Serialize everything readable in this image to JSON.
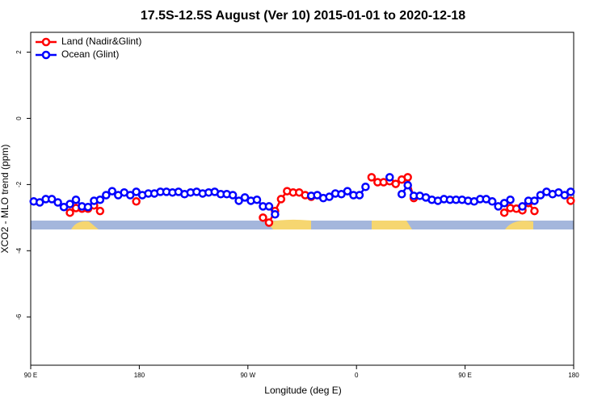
{
  "chart_data": {
    "type": "line",
    "title": "17.5S-12.5S August (Ver 10)   2015-01-01 to 2020-12-18",
    "x_label": "Longitude (deg E)",
    "y_label": "XCO2 - MLO trend (ppm)",
    "xlim": [
      90,
      540
    ],
    "ylim": [
      -7.46,
      2.6
    ],
    "xticks": [
      {
        "value": 90,
        "label": "90 E"
      },
      180,
      {
        "value": 270,
        "label": "90 W"
      },
      {
        "value": 360,
        "label": "0"
      },
      {
        "value": 450,
        "label": "90 E"
      },
      {
        "value": 540,
        "label": "180"
      }
    ],
    "yticks": [
      2,
      0,
      -2,
      -4,
      -6
    ],
    "legend": "top-left",
    "x": [
      92.5,
      97.5,
      102.5,
      107.5,
      112.5,
      117.5,
      122.5,
      127.5,
      132.5,
      137.5,
      142.5,
      147.5,
      152.5,
      157.5,
      162.5,
      167.5,
      172.5,
      177.5,
      182.5,
      187.5,
      192.5,
      197.5,
      202.5,
      207.5,
      212.5,
      217.5,
      222.5,
      227.5,
      232.5,
      237.5,
      242.5,
      247.5,
      252.5,
      257.5,
      262.5,
      267.5,
      272.5,
      277.5,
      282.5,
      287.5,
      292.5,
      297.5,
      302.5,
      307.5,
      312.5,
      317.5,
      322.5,
      327.5,
      332.5,
      337.5,
      342.5,
      347.5,
      352.5,
      357.5,
      362.5,
      367.5,
      372.5,
      377.5,
      382.5,
      387.5,
      392.5,
      397.5,
      402.5,
      407.5,
      412.5,
      417.5,
      422.5,
      427.5,
      432.5,
      437.5,
      442.5,
      447.5,
      452.5,
      457.5,
      462.5,
      467.5,
      472.5,
      477.5,
      482.5,
      487.5,
      492.5,
      497.5,
      502.5,
      507.5,
      512.5,
      517.5,
      522.5,
      527.5,
      532.5,
      537.5
    ],
    "series": [
      {
        "name": "Land (Nadir&Glint)",
        "color": "#ff0000",
        "values": [
          null,
          null,
          null,
          null,
          null,
          null,
          -2.85,
          -2.71,
          -2.73,
          -2.73,
          -2.63,
          -2.8,
          null,
          null,
          null,
          null,
          null,
          -2.51,
          null,
          null,
          null,
          null,
          null,
          null,
          null,
          null,
          null,
          null,
          null,
          null,
          null,
          null,
          null,
          null,
          null,
          null,
          null,
          null,
          -3.0,
          -3.15,
          -2.8,
          -2.44,
          -2.2,
          -2.24,
          -2.24,
          -2.32,
          -2.37,
          null,
          null,
          null,
          null,
          null,
          null,
          null,
          null,
          null,
          -1.78,
          -1.93,
          -1.93,
          -1.9,
          -1.98,
          -1.85,
          -1.78,
          -2.41,
          null,
          null,
          null,
          null,
          null,
          null,
          null,
          null,
          null,
          null,
          null,
          null,
          null,
          null,
          -2.85,
          -2.71,
          -2.73,
          -2.78,
          -2.56,
          -2.8,
          null,
          null,
          null,
          null,
          null,
          -2.49
        ]
      },
      {
        "name": "Ocean (Glint)",
        "color": "#0000ff",
        "values": [
          -2.51,
          -2.54,
          -2.44,
          -2.44,
          -2.54,
          -2.68,
          -2.59,
          -2.46,
          -2.66,
          -2.68,
          -2.49,
          -2.46,
          -2.32,
          -2.2,
          -2.32,
          -2.24,
          -2.32,
          -2.22,
          -2.32,
          -2.27,
          -2.27,
          -2.22,
          -2.22,
          -2.24,
          -2.22,
          -2.29,
          -2.24,
          -2.22,
          -2.27,
          -2.24,
          -2.22,
          -2.29,
          -2.29,
          -2.32,
          -2.49,
          -2.39,
          -2.49,
          -2.46,
          -2.66,
          -2.66,
          -2.9,
          null,
          null,
          null,
          null,
          null,
          -2.34,
          -2.32,
          -2.41,
          -2.37,
          -2.27,
          -2.29,
          -2.2,
          -2.32,
          -2.32,
          -2.07,
          null,
          null,
          null,
          -1.78,
          null,
          -2.29,
          -2.02,
          -2.34,
          -2.34,
          -2.39,
          -2.46,
          -2.49,
          -2.44,
          -2.46,
          -2.46,
          -2.46,
          -2.49,
          -2.51,
          -2.44,
          -2.44,
          -2.51,
          -2.66,
          -2.56,
          -2.46,
          null,
          -2.66,
          -2.49,
          -2.49,
          -2.32,
          -2.22,
          -2.29,
          -2.24,
          -2.32,
          -2.22
        ]
      }
    ]
  }
}
